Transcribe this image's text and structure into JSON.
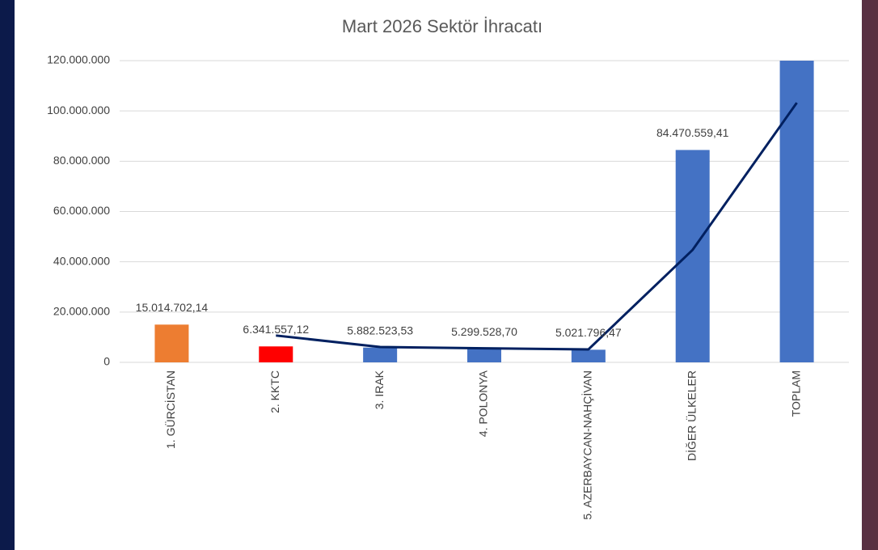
{
  "chart_data": {
    "type": "bar",
    "title": "Mart 2026 Sektör İhracatı",
    "categories": [
      "1. GÜRCİSTAN",
      "2. KKTC",
      "3. IRAK",
      "4. POLONYA",
      "5. AZERBAYCAN-NAHÇİVAN",
      "DİĞER ÜLKELER",
      "TOPLAM"
    ],
    "series": [
      {
        "type": "bar",
        "colors": [
          "#ed7d31",
          "#ff0000",
          "#4472c4",
          "#4472c4",
          "#4472c4",
          "#4472c4",
          "#4472c4"
        ],
        "values": [
          15014702.14,
          6341557.12,
          5882523.53,
          5299528.7,
          5021796.47,
          84470559.41,
          122030667.37
        ],
        "value_labels": [
          "15.014.702,14",
          "6.341.557,12",
          "5.882.523,53",
          "5.299.528,70",
          "5.021.796,47",
          "84.470.559,41",
          null
        ]
      },
      {
        "type": "line",
        "color": "#002060",
        "values": [
          null,
          10678129.63,
          6112040.33,
          5591026.12,
          5160662.59,
          44746177.94,
          103250613.39
        ]
      }
    ],
    "ylim": [
      0,
      120000000
    ],
    "yticks": [
      0,
      {
        "value": 20000000,
        "label": "20.000.000"
      },
      {
        "value": 40000000,
        "label": "40.000.000"
      },
      {
        "value": 60000000,
        "label": "60.000.000"
      },
      {
        "value": 80000000,
        "label": "80.000.000"
      },
      {
        "value": 100000000,
        "label": "100.000.000"
      },
      {
        "value": 120000000,
        "label": "120.000.000"
      }
    ],
    "grid": true
  }
}
